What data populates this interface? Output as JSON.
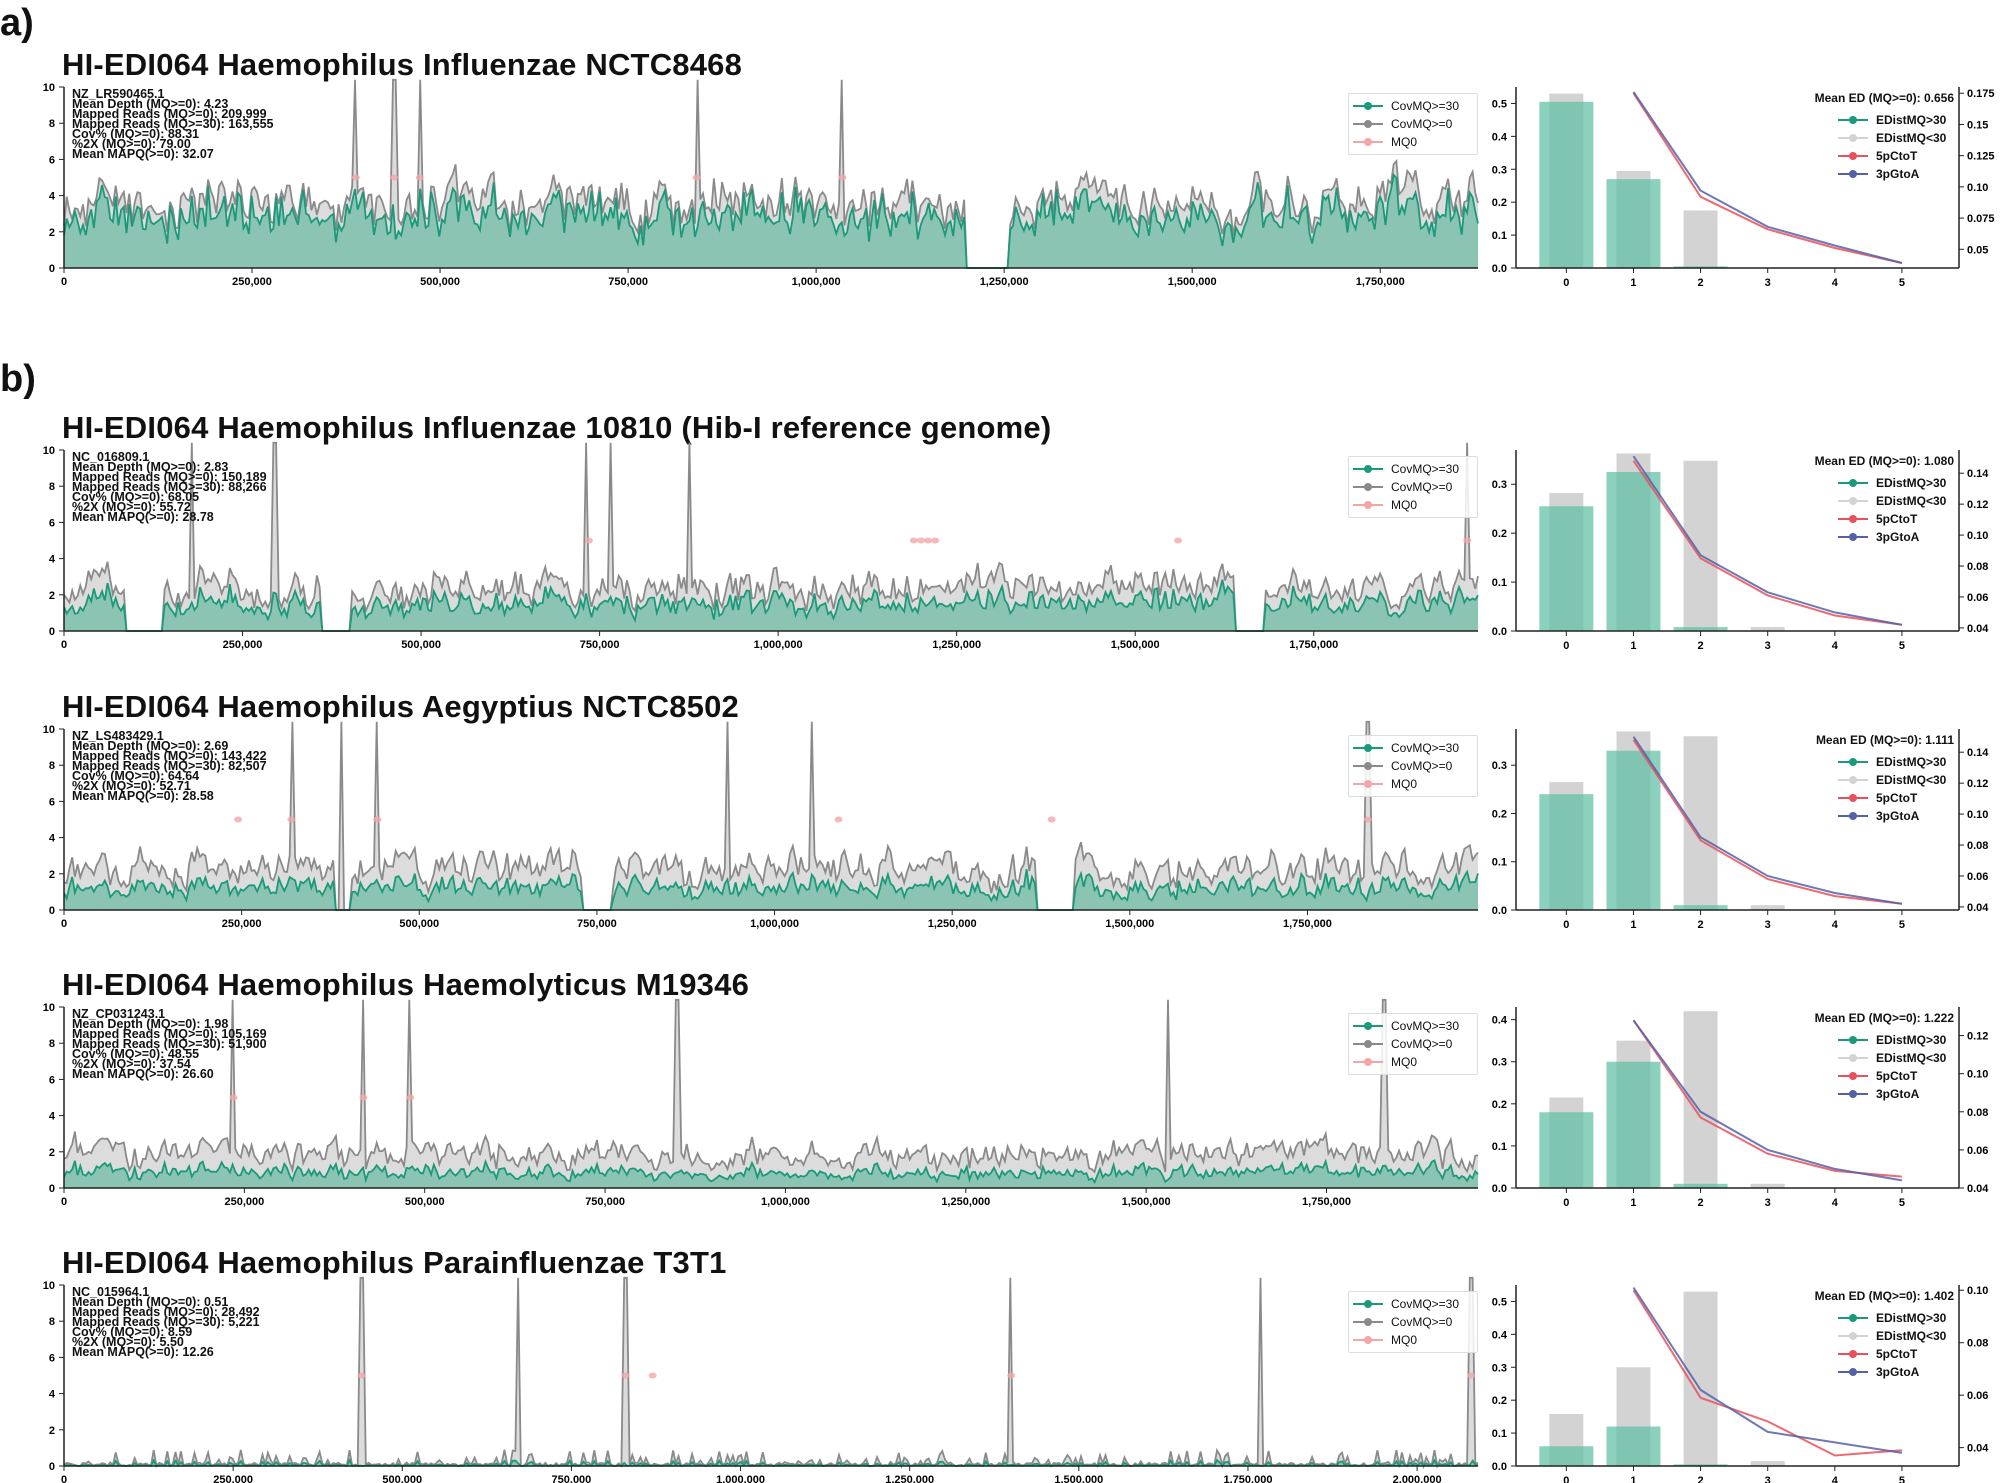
{
  "labels": {
    "a": "a)",
    "b": "b)"
  },
  "colors": {
    "cov30": "#1a9a7a",
    "cov30_fill": "#8cc4b3",
    "cov0": "#8a8a8a",
    "cov0_fill": "#dcdcdc",
    "mq0": "#f4a6a6",
    "ctot": "#e8505b",
    "gtoa": "#5560a8",
    "bar30": "#5fbfa3",
    "bar_lt30": "#d3d3d3"
  },
  "coverage_legend": [
    "CovMQ>=30",
    "CovMQ>=0",
    "MQ0"
  ],
  "ed_legend": [
    "EDistMQ>30",
    "EDistMQ<30",
    "5pCtoT",
    "3pGtoA"
  ],
  "panels": [
    {
      "title": "HI-EDI064 Haemophilus Influenzae NCTC8468",
      "stats": [
        "NZ_LR590465.1",
        "Mean Depth (MQ>=0):  4.23",
        "Mapped Reads (MQ>=0):  209,999",
        "Mapped Reads (MQ>=30):  163,555",
        "Cov% (MQ>=0):  88.31",
        "%2X (MQ>=0):  79.00",
        "Mean MAPQ(>=0):  32.07"
      ],
      "mean_ed": "Mean ED (MQ>=0):  0.656"
    },
    {
      "title": "HI-EDI064 Haemophilus Influenzae 10810 (Hib-I reference genome)",
      "stats": [
        "NC_016809.1",
        "Mean Depth (MQ>=0):  2.83",
        "Mapped Reads (MQ>=0):  150,189",
        "Mapped Reads (MQ>=30):  88,266",
        "Cov% (MQ>=0):  68.05",
        "%2X (MQ>=0):  55.72",
        "Mean MAPQ(>=0):  28.78"
      ],
      "mean_ed": "Mean ED (MQ>=0):  1.080"
    },
    {
      "title": "HI-EDI064 Haemophilus Aegyptius NCTC8502",
      "stats": [
        "NZ_LS483429.1",
        "Mean Depth (MQ>=0):  2.69",
        "Mapped Reads (MQ>=0):  143,422",
        "Mapped Reads (MQ>=30):  82,507",
        "Cov% (MQ>=0):  64.64",
        "%2X (MQ>=0):  52.71",
        "Mean MAPQ(>=0):  28.58"
      ],
      "mean_ed": "Mean ED (MQ>=0):  1.111"
    },
    {
      "title": "HI-EDI064 Haemophilus Haemolyticus M19346",
      "stats": [
        "NZ_CP031243.1",
        "Mean Depth (MQ>=0):  1.98",
        "Mapped Reads (MQ>=0):  105,169",
        "Mapped Reads (MQ>=30):  51,900",
        "Cov% (MQ>=0):  48.55",
        "%2X (MQ>=0):  37.54",
        "Mean MAPQ(>=0):  26.60"
      ],
      "mean_ed": "Mean ED (MQ>=0):  1.222"
    },
    {
      "title": "HI-EDI064 Haemophilus Parainfluenzae T3T1",
      "stats": [
        "NC_015964.1",
        "Mean Depth (MQ>=0):  0.51",
        "Mapped Reads (MQ>=0):  28,492",
        "Mapped Reads (MQ>=30):  5,221",
        "Cov% (MQ>=0):  8.59",
        "%2X (MQ>=0):  5.50",
        "Mean MAPQ(>=0):  12.26"
      ],
      "mean_ed": "Mean ED (MQ>=0):  1.402"
    }
  ],
  "chart_data": [
    {
      "type": "area",
      "panel": 0,
      "genome_length": 1880000,
      "ylim": [
        0,
        10
      ],
      "yticks": [
        0,
        2,
        4,
        6,
        8,
        10
      ],
      "xtick_step": 250000,
      "base_depth_mq0": 3.6,
      "base_depth_mq30": 3.0,
      "zero_coverage_regions": [
        [
          1200000,
          1258000
        ]
      ],
      "spikes": [
        388000,
        439000,
        473000,
        841000,
        1035000
      ],
      "mq0_points": [
        388000,
        439000,
        473000,
        841000,
        1035000
      ],
      "mq0_level": 5
    },
    {
      "type": "bar+line",
      "panel": 0,
      "x": [
        0,
        1,
        2,
        3,
        4,
        5
      ],
      "edist_mq_gt30": [
        0.505,
        0.27,
        0.005,
        0,
        0,
        0
      ],
      "edist_mq_lt30": [
        0.53,
        0.295,
        0.175,
        0,
        0,
        0
      ],
      "ylim": [
        0,
        0.55
      ],
      "yticks": [
        0,
        0.1,
        0.2,
        0.3,
        0.4,
        0.5
      ],
      "y2lim": [
        0.035,
        0.18
      ],
      "y2ticks": [
        0.05,
        0.075,
        0.1,
        0.125,
        0.15,
        0.175
      ],
      "line_x": [
        1,
        2,
        3,
        4,
        5
      ],
      "5pCtoT": [
        0.175,
        0.092,
        0.066,
        0.051,
        0.039
      ],
      "3pGtoA": [
        0.176,
        0.097,
        0.068,
        0.053,
        0.039
      ]
    },
    {
      "type": "area",
      "panel": 1,
      "genome_length": 1980000,
      "ylim": [
        0,
        10
      ],
      "yticks": [
        0,
        2,
        4,
        6,
        8,
        10
      ],
      "xtick_step": 250000,
      "base_depth_mq0": 2.4,
      "base_depth_mq30": 1.6,
      "zero_coverage_regions": [
        [
          85000,
          140000
        ],
        [
          360000,
          400000
        ],
        [
          1640000,
          1680000
        ]
      ],
      "spikes": [
        178000,
        295000,
        732000,
        764000,
        875000,
        1965000
      ],
      "mq0_points": [
        735000,
        1190000,
        1200000,
        1210000,
        1220000,
        1560000,
        1965000
      ],
      "mq0_level": 5
    },
    {
      "type": "bar+line",
      "panel": 1,
      "x": [
        0,
        1,
        2,
        3,
        4,
        5
      ],
      "edist_mq_gt30": [
        0.255,
        0.325,
        0.008,
        0,
        0,
        0
      ],
      "edist_mq_lt30": [
        0.282,
        0.363,
        0.348,
        0.008,
        0,
        0
      ],
      "ylim": [
        0,
        0.37
      ],
      "yticks": [
        0,
        0.1,
        0.2,
        0.3
      ],
      "y2lim": [
        0.038,
        0.155
      ],
      "y2ticks": [
        0.04,
        0.06,
        0.08,
        0.1,
        0.12,
        0.14
      ],
      "line_x": [
        1,
        2,
        3,
        4,
        5
      ],
      "5pCtoT": [
        0.148,
        0.085,
        0.061,
        0.048,
        0.042
      ],
      "3pGtoA": [
        0.151,
        0.087,
        0.063,
        0.05,
        0.042
      ]
    },
    {
      "type": "area",
      "panel": 2,
      "genome_length": 1990000,
      "ylim": [
        0,
        10
      ],
      "yticks": [
        0,
        2,
        4,
        6,
        8,
        10
      ],
      "xtick_step": 250000,
      "base_depth_mq0": 2.3,
      "base_depth_mq30": 1.3,
      "zero_coverage_regions": [
        [
          380000,
          405000
        ],
        [
          730000,
          770000
        ],
        [
          1370000,
          1420000
        ]
      ],
      "spikes": [
        320000,
        390000,
        441000,
        935000,
        1052000,
        1835000
      ],
      "mq0_points": [
        245000,
        320000,
        441000,
        1090000,
        1390000,
        1835000
      ],
      "mq0_level": 5
    },
    {
      "type": "bar+line",
      "panel": 2,
      "x": [
        0,
        1,
        2,
        3,
        4,
        5
      ],
      "edist_mq_gt30": [
        0.24,
        0.33,
        0.01,
        0,
        0,
        0
      ],
      "edist_mq_lt30": [
        0.265,
        0.37,
        0.36,
        0.01,
        0,
        0
      ],
      "ylim": [
        0,
        0.375
      ],
      "yticks": [
        0,
        0.1,
        0.2,
        0.3
      ],
      "y2lim": [
        0.038,
        0.155
      ],
      "y2ticks": [
        0.04,
        0.06,
        0.08,
        0.1,
        0.12,
        0.14
      ],
      "line_x": [
        1,
        2,
        3,
        4,
        5
      ],
      "5pCtoT": [
        0.148,
        0.083,
        0.058,
        0.047,
        0.042
      ],
      "3pGtoA": [
        0.15,
        0.085,
        0.06,
        0.049,
        0.042
      ]
    },
    {
      "type": "area",
      "panel": 3,
      "genome_length": 1960000,
      "ylim": [
        0,
        10
      ],
      "yticks": [
        0,
        2,
        4,
        6,
        8,
        10
      ],
      "xtick_step": 250000,
      "base_depth_mq0": 1.9,
      "base_depth_mq30": 0.9,
      "zero_coverage_regions": [],
      "spikes": [
        235000,
        415000,
        480000,
        850000,
        1530000,
        1830000
      ],
      "mq0_points": [
        235000,
        415000,
        480000
      ],
      "mq0_level": 5
    },
    {
      "type": "bar+line",
      "panel": 3,
      "x": [
        0,
        1,
        2,
        3,
        4,
        5
      ],
      "edist_mq_gt30": [
        0.18,
        0.3,
        0.01,
        0,
        0,
        0
      ],
      "edist_mq_lt30": [
        0.215,
        0.35,
        0.42,
        0.01,
        0,
        0
      ],
      "ylim": [
        0,
        0.43
      ],
      "yticks": [
        0,
        0.1,
        0.2,
        0.3,
        0.4
      ],
      "y2lim": [
        0.04,
        0.135
      ],
      "y2ticks": [
        0.04,
        0.06,
        0.08,
        0.1,
        0.12
      ],
      "line_x": [
        1,
        2,
        3,
        4,
        5
      ],
      "5pCtoT": [
        0.128,
        0.077,
        0.058,
        0.049,
        0.046
      ],
      "3pGtoA": [
        0.128,
        0.08,
        0.06,
        0.05,
        0.044
      ]
    },
    {
      "type": "area",
      "panel": 4,
      "genome_length": 2090000,
      "ylim": [
        0,
        10
      ],
      "yticks": [
        0,
        2,
        4,
        6,
        8,
        10
      ],
      "xtick_step": 250000,
      "base_depth_mq0": 0.3,
      "base_depth_mq30": 0.1,
      "zero_coverage_regions": [],
      "spikes": [
        440000,
        670000,
        830000,
        1400000,
        1770000,
        2080000
      ],
      "mq0_points": [
        440000,
        830000,
        870000,
        1400000,
        2080000
      ],
      "mq0_level": 5
    },
    {
      "type": "bar+line",
      "panel": 4,
      "x": [
        0,
        1,
        2,
        3,
        4,
        5
      ],
      "edist_mq_gt30": [
        0.06,
        0.12,
        0.005,
        0,
        0,
        0
      ],
      "edist_mq_lt30": [
        0.158,
        0.3,
        0.53,
        0.015,
        0,
        0
      ],
      "ylim": [
        0,
        0.55
      ],
      "yticks": [
        0,
        0.1,
        0.2,
        0.3,
        0.4,
        0.5
      ],
      "y2lim": [
        0.033,
        0.102
      ],
      "y2ticks": [
        0.04,
        0.06,
        0.08,
        0.1
      ],
      "line_x": [
        1,
        2,
        3,
        4,
        5
      ],
      "5pCtoT": [
        0.1,
        0.059,
        0.05,
        0.037,
        0.039
      ],
      "3pGtoA": [
        0.101,
        0.062,
        0.046,
        0.042,
        0.038
      ]
    }
  ]
}
